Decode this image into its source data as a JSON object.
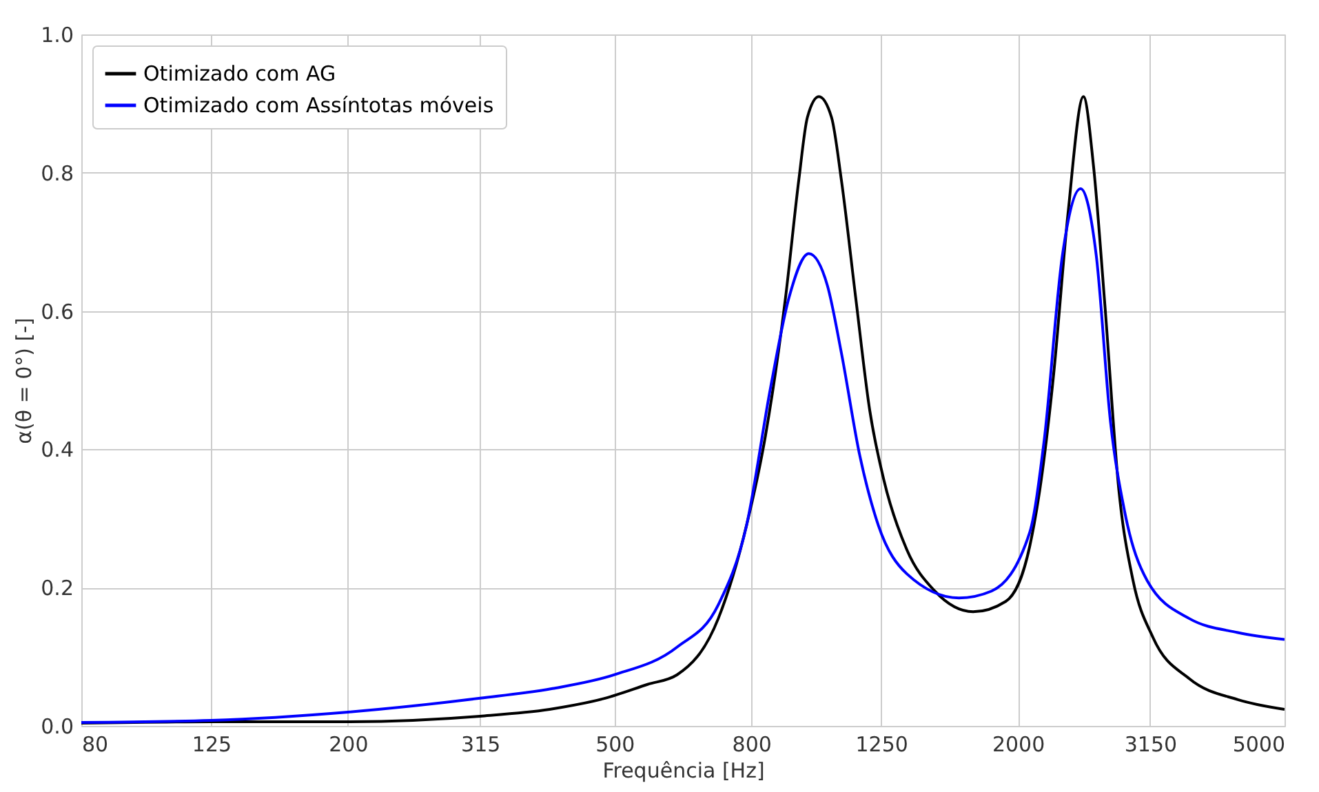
{
  "chart_data": {
    "type": "line",
    "xlabel": "Frequência [Hz]",
    "ylabel": "α(θ = 0°) [-]",
    "log": "x",
    "xlim": [
      80,
      5000
    ],
    "xticks": [
      80,
      125,
      200,
      315,
      500,
      800,
      1250,
      2000,
      3150,
      5000
    ],
    "ylim": [
      0,
      1
    ],
    "yticks": [
      {
        "value": 0,
        "label": "0.0"
      },
      0.2,
      0.4,
      0.6,
      0.8,
      {
        "value": 1,
        "label": "1.0"
      }
    ],
    "grid": true,
    "legend": "top left",
    "line_style": "solid",
    "series": [
      {
        "name": "Otimizado com AG",
        "color": "#000000",
        "x": [
          80,
          125,
          200,
          315,
          400,
          484,
          560,
          620,
          714,
          787,
          840,
          900,
          942,
          970,
          1009,
          1054,
          1090,
          1145,
          1202,
          1262,
          1365,
          1503,
          1715,
          1918,
          2083,
          2155,
          2262,
          2375,
          2505,
          2593,
          2696,
          2830,
          2971,
          3181,
          3608,
          4258,
          5000
        ],
        "values": [
          0.004,
          0.006,
          0.006,
          0.014,
          0.024,
          0.04,
          0.06,
          0.074,
          0.155,
          0.29,
          0.42,
          0.62,
          0.79,
          0.88,
          0.91,
          0.88,
          0.79,
          0.62,
          0.456,
          0.355,
          0.255,
          0.195,
          0.165,
          0.18,
          0.26,
          0.34,
          0.51,
          0.74,
          0.91,
          0.81,
          0.61,
          0.34,
          0.21,
          0.128,
          0.068,
          0.038,
          0.024
        ]
      },
      {
        "name": "Otimizado com Assíntotas móveis",
        "color": "#0000ff",
        "x": [
          80,
          125,
          200,
          315,
          404,
          500,
          620,
          714,
          787,
          855,
          911,
          975,
          1039,
          1090,
          1162,
          1238,
          1365,
          1633,
          1827,
          2083,
          2187,
          2330,
          2481,
          2618,
          2749,
          2886,
          3119,
          3608,
          4258,
          5000
        ],
        "values": [
          0.005,
          0.008,
          0.02,
          0.04,
          0.054,
          0.074,
          0.114,
          0.175,
          0.29,
          0.49,
          0.62,
          0.683,
          0.637,
          0.54,
          0.39,
          0.29,
          0.22,
          0.185,
          0.195,
          0.28,
          0.41,
          0.68,
          0.777,
          0.68,
          0.44,
          0.31,
          0.21,
          0.155,
          0.135,
          0.125
        ]
      }
    ]
  }
}
